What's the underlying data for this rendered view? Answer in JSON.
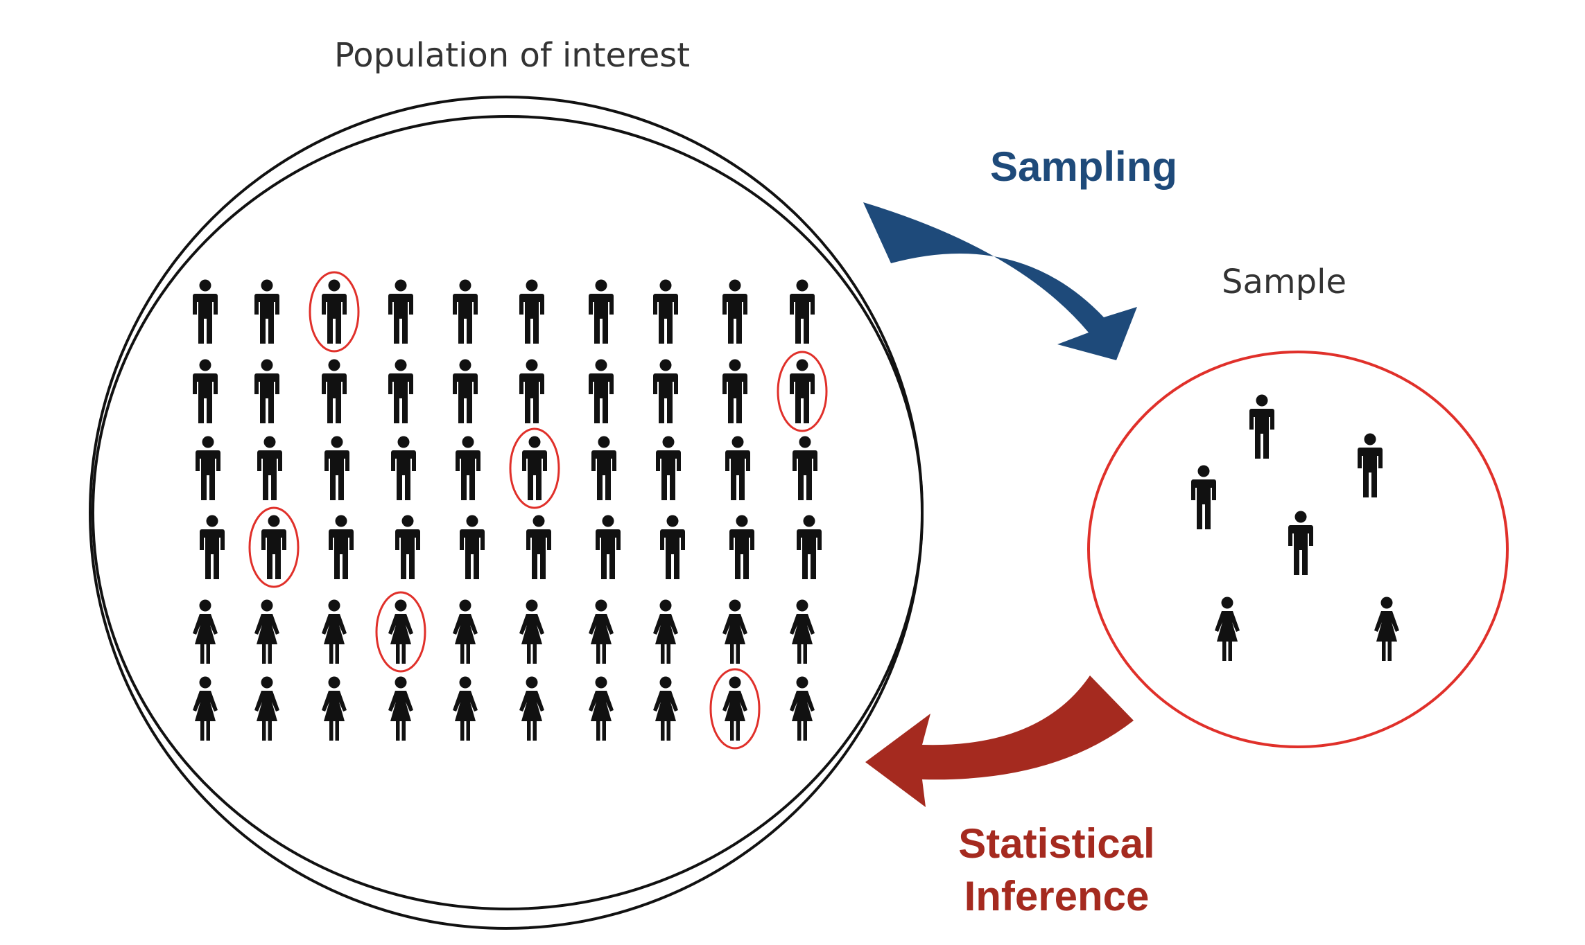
{
  "labels": {
    "population": "Population of interest",
    "sample": "Sample",
    "sampling": "Sampling",
    "inference_line1": "Statistical",
    "inference_line2": "Inference"
  },
  "colors": {
    "population_circle": "#111111",
    "sample_circle": "#e0302a",
    "selection_ring": "#e0302a",
    "sampling_arrow": "#1e4a7a",
    "inference_arrow": "#a52a1f",
    "figure": "#111111"
  },
  "population_grid": {
    "rows": [
      [
        "male",
        "male",
        "male",
        "male",
        "male",
        "male",
        "male",
        "male",
        "male",
        "male"
      ],
      [
        "male",
        "male",
        "male",
        "male",
        "male",
        "male",
        "male",
        "male",
        "male",
        "male"
      ],
      [
        "male",
        "male",
        "male",
        "male",
        "male",
        "male",
        "male",
        "male",
        "male",
        "male"
      ],
      [
        "male",
        "male",
        "male",
        "male",
        "male",
        "male",
        "male",
        "male",
        "male",
        "male"
      ],
      [
        "female",
        "female",
        "female",
        "female",
        "female",
        "female",
        "female",
        "female",
        "female",
        "female"
      ],
      [
        "female",
        "female",
        "female",
        "female",
        "female",
        "female",
        "female",
        "female",
        "female",
        "female"
      ]
    ],
    "selected": [
      [
        0,
        2
      ],
      [
        1,
        9
      ],
      [
        2,
        5
      ],
      [
        3,
        1
      ],
      [
        4,
        3
      ],
      [
        5,
        8
      ]
    ]
  },
  "sample_people": [
    "male",
    "male",
    "male",
    "male",
    "female",
    "female"
  ]
}
